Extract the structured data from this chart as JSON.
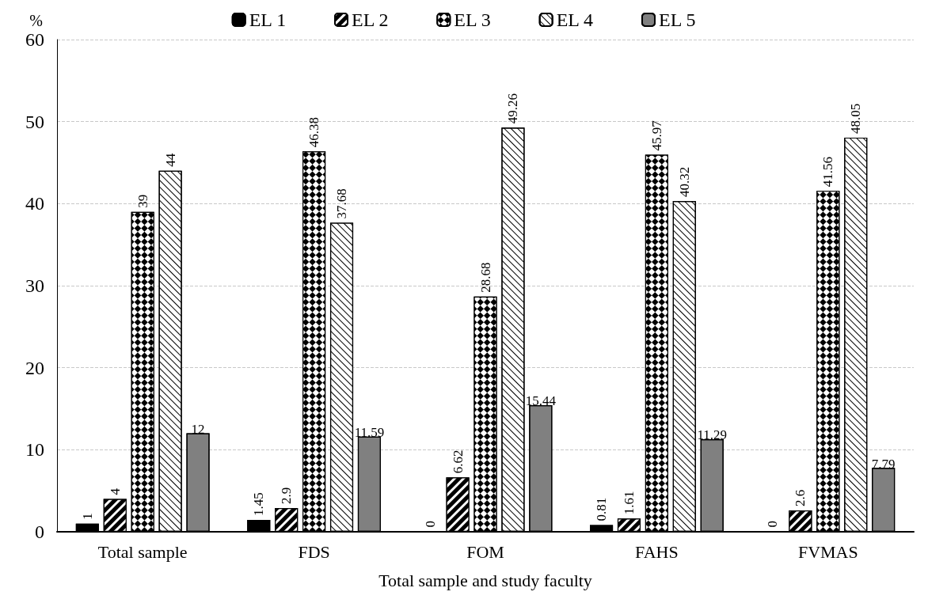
{
  "chart_data": {
    "type": "bar",
    "xlabel": "Total sample and study faculty",
    "ylabel": "%",
    "categories": [
      "Total sample",
      "FDS",
      "FOM",
      "FAHS",
      "FVMAS"
    ],
    "series": [
      {
        "name": "EL 1",
        "color": "#000000",
        "values": [
          1,
          1.45,
          0,
          0.81,
          0
        ]
      },
      {
        "name": "EL 2",
        "color": "#000000",
        "values": [
          4,
          2.9,
          6.62,
          1.61,
          2.6
        ]
      },
      {
        "name": "EL 3",
        "color": "#000000",
        "values": [
          39,
          46.38,
          28.68,
          45.97,
          41.56
        ]
      },
      {
        "name": "EL 4",
        "color": "#ffffff",
        "values": [
          44,
          37.68,
          49.26,
          40.32,
          48.05
        ]
      },
      {
        "name": "EL 5",
        "color": "#808080",
        "values": [
          12,
          11.59,
          15.44,
          11.29,
          7.79
        ]
      }
    ],
    "ylim": [
      0,
      60
    ],
    "yticks": [
      0,
      10,
      20,
      30,
      40,
      50,
      60
    ],
    "grid": "y",
    "legend": "top",
    "data_labels": true
  }
}
